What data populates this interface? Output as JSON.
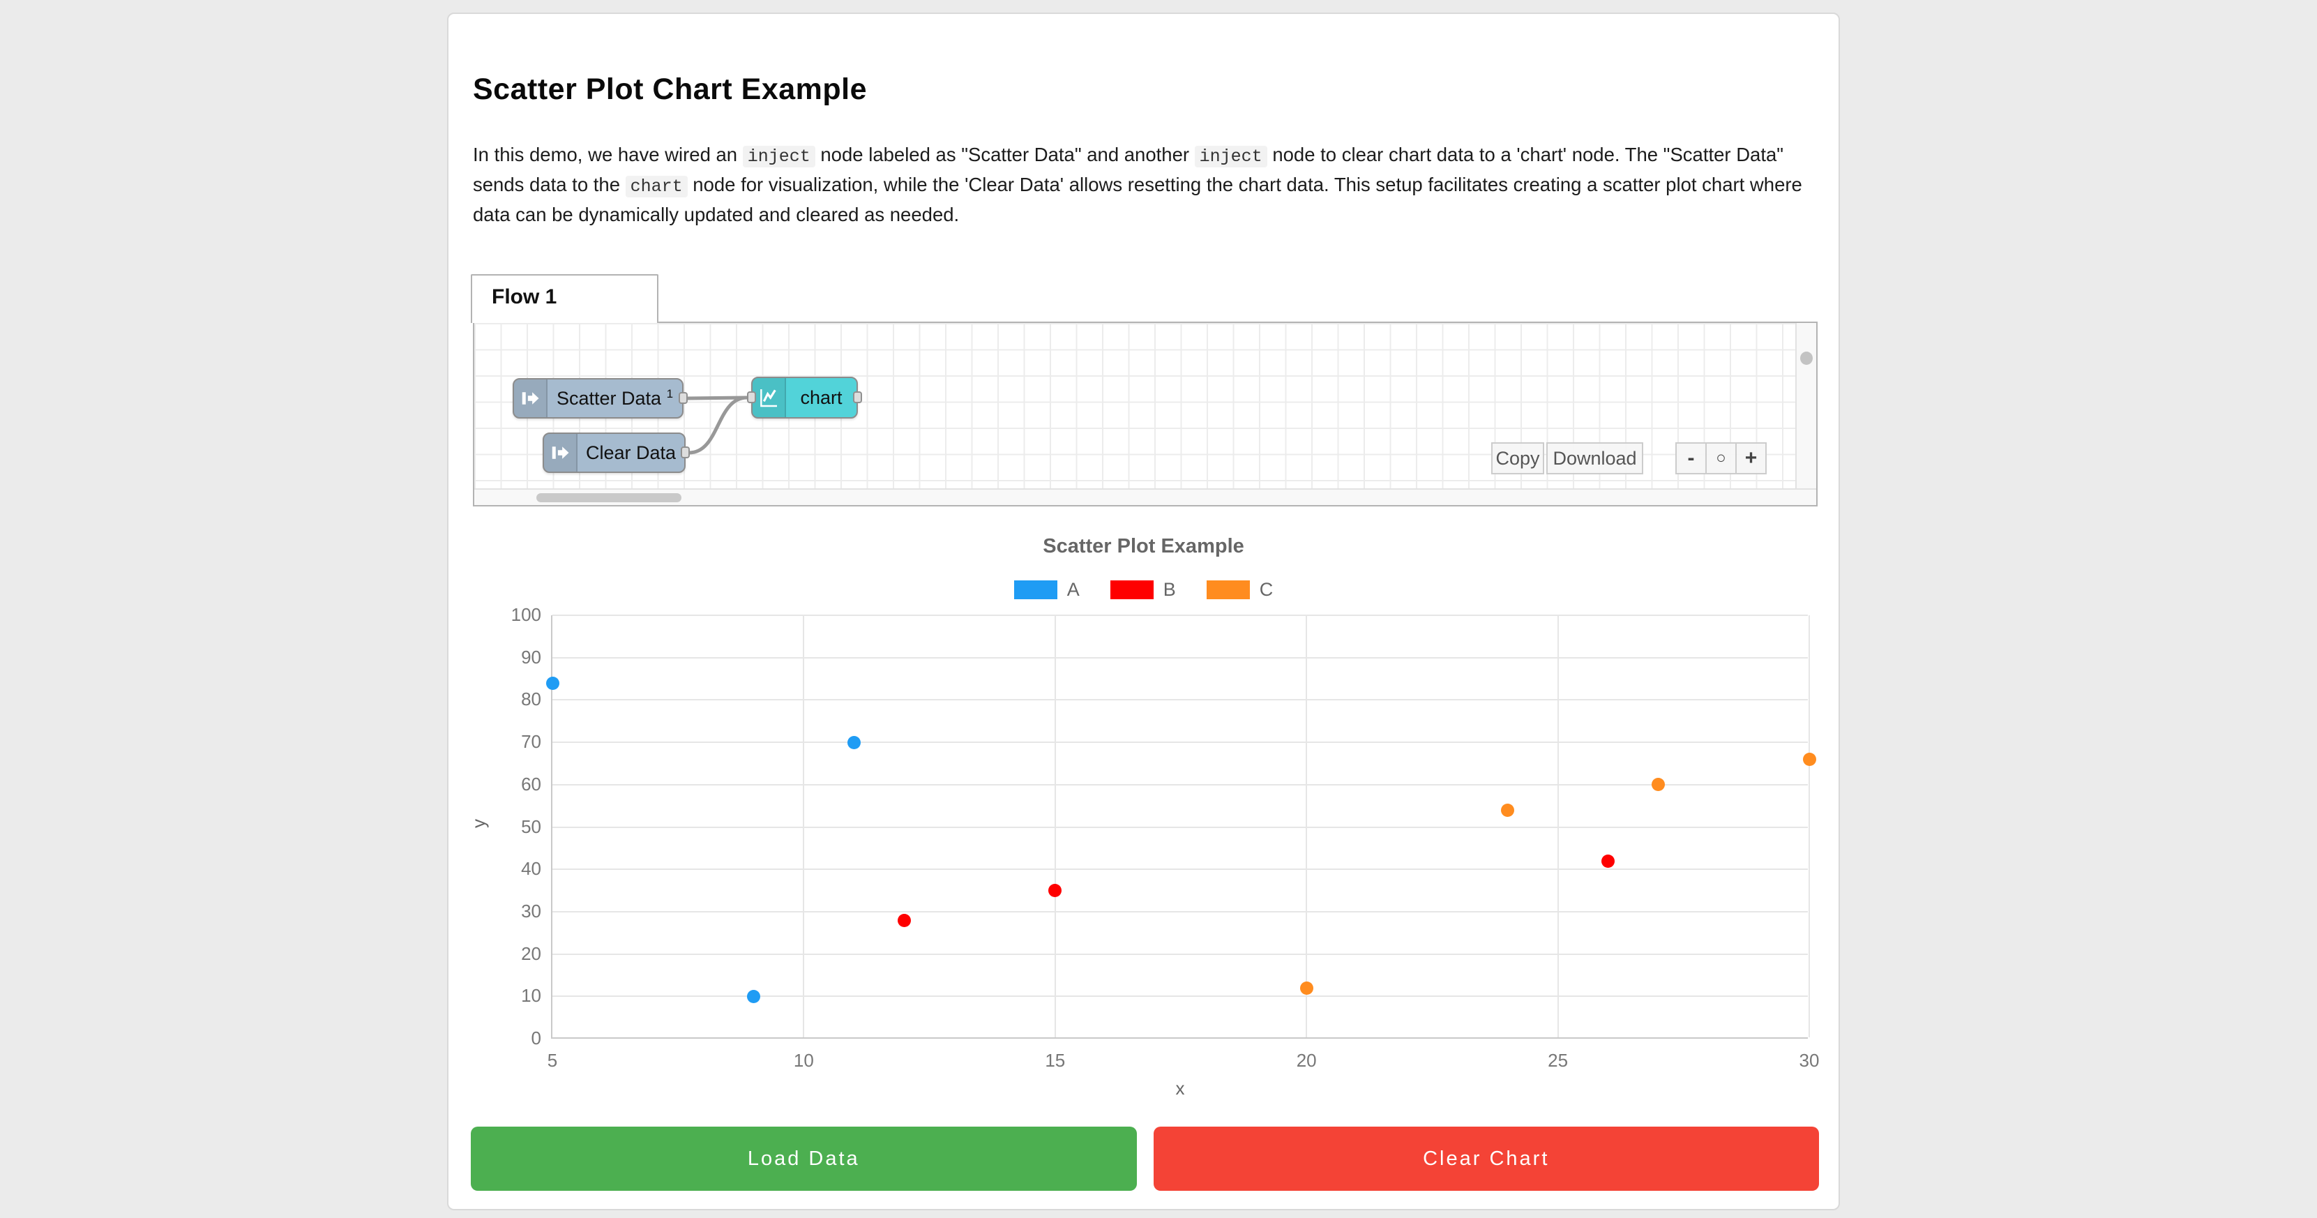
{
  "page": {
    "heading": "Scatter Plot Chart Example"
  },
  "description": {
    "segments": [
      {
        "text": "In this demo, we have wired an ",
        "code": false
      },
      {
        "text": "inject",
        "code": true
      },
      {
        "text": " node labeled as \"Scatter Data\" and another ",
        "code": false
      },
      {
        "text": "inject",
        "code": true
      },
      {
        "text": " node to clear chart data to a 'chart' node. The \"Scatter Data\" sends data to the ",
        "code": false
      },
      {
        "text": "chart",
        "code": true
      },
      {
        "text": " node for visualization, while the 'Clear Data' allows resetting the chart data. This setup facilitates creating a scatter plot chart where data can be dynamically updated and cleared as needed.",
        "code": false
      }
    ]
  },
  "flow": {
    "tab_label": "Flow 1",
    "nodes": [
      {
        "label": "Scatter Data",
        "sup": "1",
        "type": "inject"
      },
      {
        "label": "Clear Data",
        "type": "inject"
      },
      {
        "label": "chart",
        "type": "chart"
      }
    ],
    "node_colors": {
      "inject": "#a6bbcf",
      "chart": "#52d3d9"
    },
    "toolbar": {
      "copy_label": "Copy",
      "download_label": "Download",
      "zoom_out_label": "-",
      "zoom_reset_label": "○",
      "zoom_in_label": "+"
    }
  },
  "chart_data": {
    "type": "scatter",
    "title": "Scatter Plot Example",
    "xlabel": "x",
    "ylabel": "y",
    "xlim": [
      5,
      30
    ],
    "ylim": [
      0,
      100
    ],
    "x_ticks": [
      5,
      10,
      15,
      20,
      25,
      30
    ],
    "y_ticks": [
      0,
      10,
      20,
      30,
      40,
      50,
      60,
      70,
      80,
      90,
      100
    ],
    "grid": true,
    "legend_position": "top",
    "series": [
      {
        "name": "A",
        "color": "#1f9cf4",
        "points": [
          [
            5,
            84
          ],
          [
            9,
            10
          ],
          [
            11,
            70
          ]
        ]
      },
      {
        "name": "B",
        "color": "#fe0000",
        "points": [
          [
            12,
            28
          ],
          [
            15,
            35
          ],
          [
            26,
            42
          ]
        ]
      },
      {
        "name": "C",
        "color": "#ff8c1f",
        "points": [
          [
            20,
            12
          ],
          [
            24,
            54
          ],
          [
            27,
            60
          ],
          [
            30,
            66
          ]
        ]
      }
    ]
  },
  "actions": {
    "load_label": "Load Data",
    "load_color": "#4caf50",
    "clear_label": "Clear Chart",
    "clear_color": "#f44336"
  }
}
